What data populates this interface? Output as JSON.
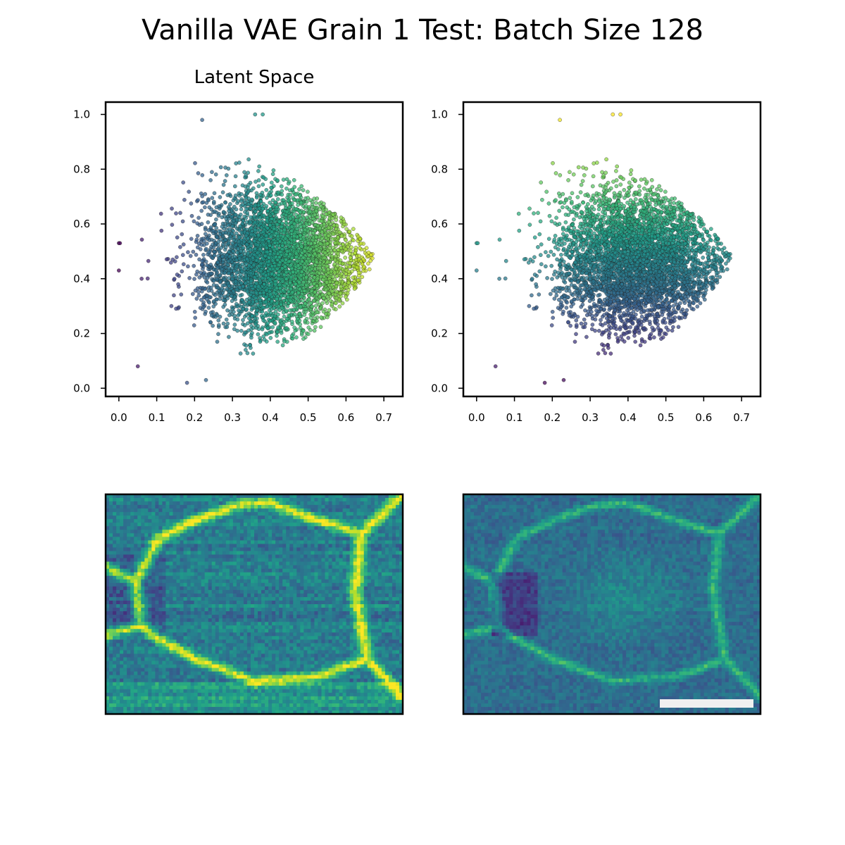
{
  "figure": {
    "title": "Vanilla VAE Grain 1 Test: Batch Size 128"
  },
  "colors": {
    "viridis": [
      "#440154",
      "#482878",
      "#3e4989",
      "#31688e",
      "#26828e",
      "#1f9e89",
      "#35b779",
      "#6ece58",
      "#b5de2b",
      "#fde725"
    ],
    "scale_bar": "#f0f0f0",
    "axis": "#000000"
  },
  "chart_data": [
    {
      "type": "scatter",
      "panel": "top-left",
      "title": "Latent Space",
      "xlabel": "",
      "ylabel": "",
      "xlim": [
        -0.035,
        0.75
      ],
      "ylim": [
        -0.03,
        1.045
      ],
      "xticks": [
        "0.0",
        "0.1",
        "0.2",
        "0.3",
        "0.4",
        "0.5",
        "0.6",
        "0.7"
      ],
      "yticks": [
        "0.0",
        "0.2",
        "0.4",
        "0.6",
        "0.8",
        "1.0"
      ],
      "color_by": "x",
      "cloud": {
        "center": [
          0.43,
          0.47
        ],
        "extent_x": [
          0.0,
          0.71
        ],
        "extent_y": [
          0.02,
          1.0
        ],
        "tip": [
          0.7,
          0.39
        ]
      },
      "outliers": [
        [
          0.0,
          0.53
        ],
        [
          0.003,
          0.53
        ],
        [
          0.0,
          0.43
        ],
        [
          0.05,
          0.08
        ],
        [
          0.06,
          0.4
        ],
        [
          0.18,
          0.02
        ],
        [
          0.23,
          0.03
        ],
        [
          0.22,
          0.98
        ],
        [
          0.36,
          1.0
        ],
        [
          0.38,
          1.0
        ]
      ]
    },
    {
      "type": "scatter",
      "panel": "top-right",
      "title": "",
      "xlabel": "",
      "ylabel": "",
      "xlim": [
        -0.035,
        0.75
      ],
      "ylim": [
        -0.03,
        1.045
      ],
      "xticks": [
        "0.0",
        "0.1",
        "0.2",
        "0.3",
        "0.4",
        "0.5",
        "0.6",
        "0.7"
      ],
      "yticks": [
        "0.0",
        "0.2",
        "0.4",
        "0.6",
        "0.8",
        "1.0"
      ],
      "color_by": "y",
      "cloud": {
        "center": [
          0.43,
          0.47
        ],
        "extent_x": [
          0.0,
          0.71
        ],
        "extent_y": [
          0.02,
          1.0
        ],
        "tip": [
          0.7,
          0.39
        ]
      },
      "outliers": [
        [
          0.0,
          0.53
        ],
        [
          0.003,
          0.53
        ],
        [
          0.0,
          0.43
        ],
        [
          0.05,
          0.08
        ],
        [
          0.06,
          0.4
        ],
        [
          0.18,
          0.02
        ],
        [
          0.23,
          0.03
        ],
        [
          0.22,
          0.98
        ],
        [
          0.36,
          1.0
        ],
        [
          0.38,
          1.0
        ]
      ]
    },
    {
      "type": "heatmap",
      "panel": "bottom-left",
      "title": "",
      "description_colormap": "viridis",
      "scale_bar": false
    },
    {
      "type": "heatmap",
      "panel": "bottom-right",
      "title": "",
      "description_colormap": "viridis",
      "scale_bar": true
    }
  ]
}
